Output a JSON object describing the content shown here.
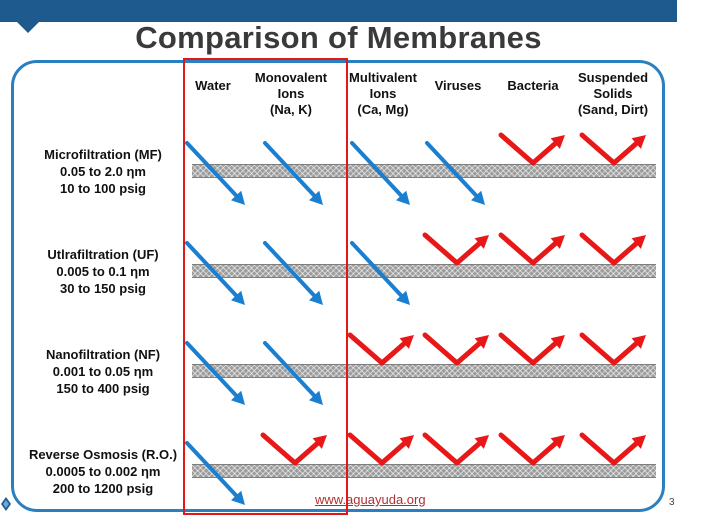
{
  "title": "Comparison of Membranes",
  "columns": [
    {
      "lines": [
        "Water"
      ]
    },
    {
      "lines": [
        "Monovalent",
        "Ions",
        "(Na, K)"
      ]
    },
    {
      "lines": [
        "Multivalent",
        "Ions",
        "(Ca, Mg)"
      ]
    },
    {
      "lines": [
        "Viruses"
      ]
    },
    {
      "lines": [
        "Bacteria"
      ]
    },
    {
      "lines": [
        "Suspended",
        "Solids",
        "(Sand, Dirt)"
      ]
    }
  ],
  "rows": [
    {
      "name": "Microfiltration (MF)",
      "range": "0.05 to 2.0 ηm",
      "pressure": "10 to 100 psig",
      "outcomes": [
        "pass",
        "pass",
        "pass",
        "pass",
        "reject",
        "reject"
      ]
    },
    {
      "name": "Utlrafiltration (UF)",
      "range": "0.005 to 0.1 ηm",
      "pressure": "30 to 150 psig",
      "outcomes": [
        "pass",
        "pass",
        "pass",
        "reject",
        "reject",
        "reject"
      ]
    },
    {
      "name": "Nanofiltration (NF)",
      "range": "0.001 to 0.05 ηm",
      "pressure": "150 to 400 psig",
      "outcomes": [
        "pass",
        "pass",
        "reject",
        "reject",
        "reject",
        "reject"
      ]
    },
    {
      "name": "Reverse Osmosis (R.O.)",
      "range": "0.0005 to 0.002 ηm",
      "pressure": "200 to 1200 psig",
      "outcomes": [
        "pass",
        "reject",
        "reject",
        "reject",
        "reject",
        "reject"
      ]
    }
  ],
  "legend_colors": {
    "pass": "#1a7fd0",
    "reject": "#e81818"
  },
  "source": "www.aguayuda.org",
  "page_number": "3",
  "highlight_color": "#e01818"
}
